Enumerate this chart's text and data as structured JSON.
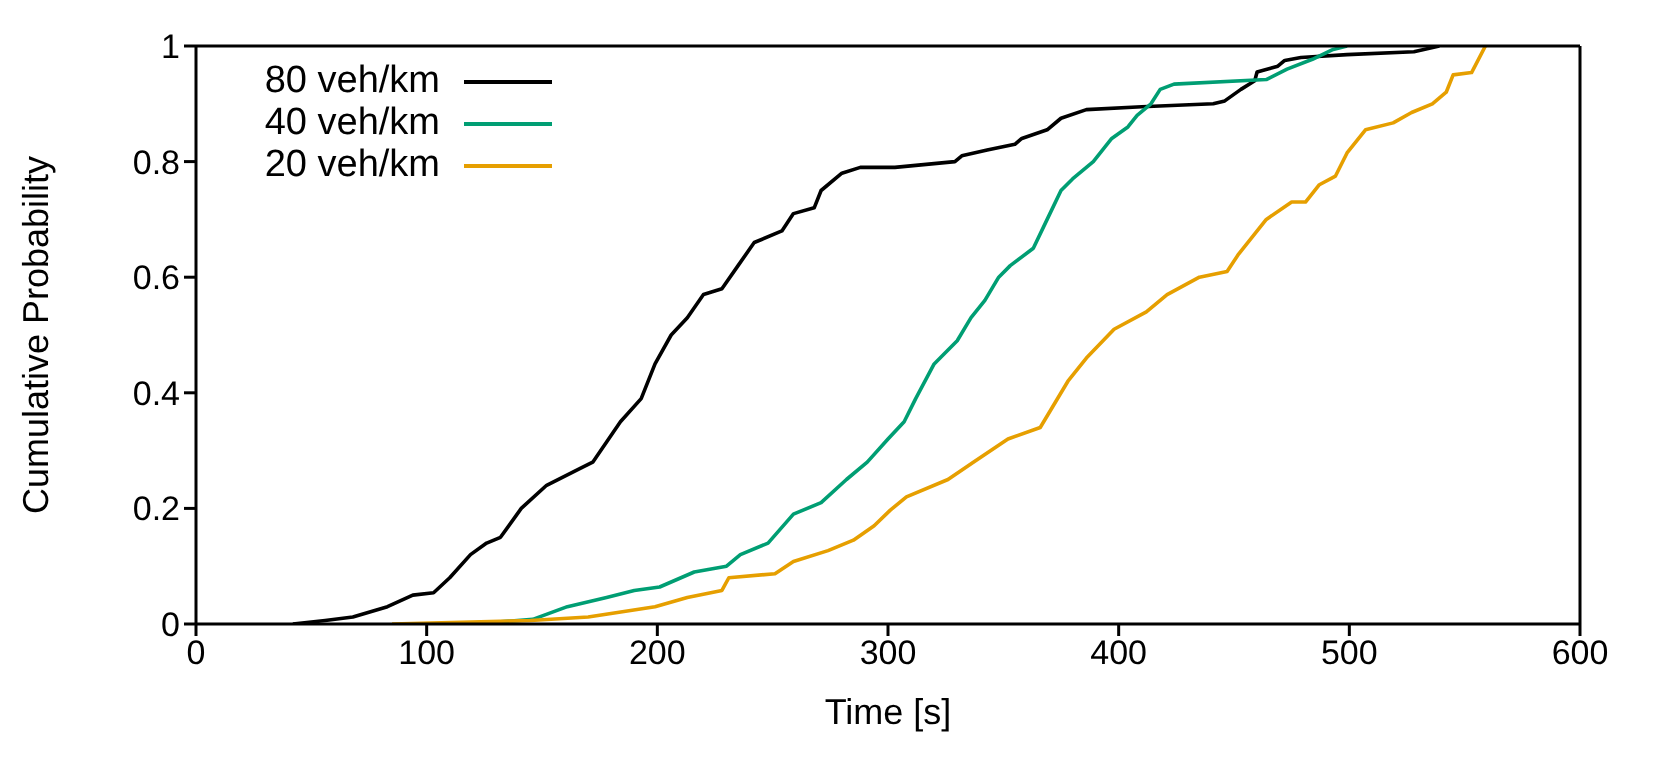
{
  "chart_data": {
    "type": "line",
    "xlabel": "Time [s]",
    "ylabel": "Cumulative Probability",
    "xlim": [
      0,
      600
    ],
    "xticks": [
      0,
      100,
      200,
      300,
      400,
      500,
      600
    ],
    "ylim": [
      0,
      1
    ],
    "yticks": [
      0,
      0.2,
      0.4,
      0.6,
      0.8,
      1
    ],
    "legend": "top left",
    "marker": "none",
    "line_style": "solid",
    "series": [
      {
        "name": "80 veh/km",
        "color": "#000000",
        "x": [
          42,
          56,
          68,
          83,
          94,
          103,
          110,
          119,
          126,
          132,
          141,
          152,
          167,
          172,
          184,
          193,
          199,
          206,
          213,
          220,
          228,
          235,
          242,
          254,
          259,
          268,
          271,
          280,
          288,
          303,
          329,
          332,
          343,
          355,
          358,
          369,
          375,
          386,
          410,
          441,
          446,
          453,
          459,
          460,
          469,
          472,
          479,
          499,
          528,
          539
        ],
        "values": [
          0,
          0.006,
          0.012,
          0.03,
          0.05,
          0.054,
          0.08,
          0.12,
          0.14,
          0.15,
          0.2,
          0.24,
          0.27,
          0.28,
          0.35,
          0.39,
          0.45,
          0.5,
          0.53,
          0.57,
          0.58,
          0.62,
          0.66,
          0.68,
          0.71,
          0.72,
          0.75,
          0.78,
          0.79,
          0.79,
          0.8,
          0.81,
          0.82,
          0.83,
          0.84,
          0.855,
          0.875,
          0.89,
          0.895,
          0.9,
          0.905,
          0.925,
          0.94,
          0.955,
          0.965,
          0.975,
          0.98,
          0.985,
          0.99,
          1
        ]
      },
      {
        "name": "40 veh/km",
        "color": "#009e73",
        "x": [
          120,
          146,
          161,
          178,
          190,
          201,
          216,
          230,
          236,
          248,
          259,
          271,
          282,
          291,
          300,
          307,
          312,
          320,
          330,
          336,
          342,
          348,
          353,
          363,
          369,
          375,
          380,
          389,
          397,
          404,
          408,
          414,
          418,
          424,
          464,
          473,
          484,
          493,
          499
        ],
        "values": [
          0,
          0.008,
          0.03,
          0.046,
          0.058,
          0.064,
          0.09,
          0.1,
          0.12,
          0.14,
          0.19,
          0.21,
          0.25,
          0.28,
          0.32,
          0.35,
          0.39,
          0.45,
          0.49,
          0.53,
          0.56,
          0.6,
          0.62,
          0.65,
          0.7,
          0.75,
          0.77,
          0.8,
          0.84,
          0.86,
          0.88,
          0.9,
          0.925,
          0.934,
          0.942,
          0.96,
          0.977,
          0.994,
          1
        ]
      },
      {
        "name": "20 veh/km",
        "color": "#e69f00",
        "x": [
          85,
          145,
          170,
          199,
          213,
          228,
          231,
          251,
          259,
          274,
          285,
          294,
          301,
          308,
          326,
          337,
          352,
          366,
          378,
          386,
          398,
          412,
          421,
          435,
          447,
          452,
          464,
          475,
          481,
          487,
          494,
          499,
          507,
          519,
          527,
          536,
          542,
          545,
          553,
          559
        ],
        "values": [
          0,
          0.006,
          0.012,
          0.03,
          0.046,
          0.058,
          0.08,
          0.087,
          0.108,
          0.127,
          0.145,
          0.17,
          0.197,
          0.22,
          0.25,
          0.28,
          0.32,
          0.34,
          0.42,
          0.46,
          0.51,
          0.54,
          0.57,
          0.6,
          0.61,
          0.64,
          0.7,
          0.73,
          0.73,
          0.76,
          0.775,
          0.815,
          0.855,
          0.867,
          0.885,
          0.9,
          0.92,
          0.95,
          0.954,
          1
        ]
      }
    ]
  }
}
